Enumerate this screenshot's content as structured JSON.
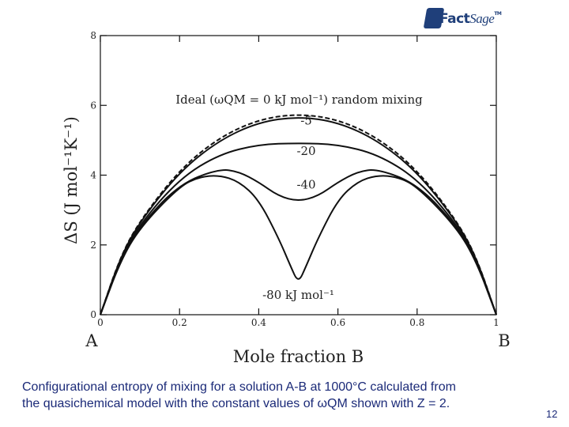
{
  "logo": {
    "brand_fact": "Fact",
    "brand_sage": "Sage",
    "tm": "TM",
    "icon": "factsage-logo-icon"
  },
  "caption": {
    "line1": "Configurational entropy of mixing for a solution A-B at 1000°C calculated from",
    "line2": "the quasichemical model with the constant values of ωQM shown with Z = 2."
  },
  "page_number": "12",
  "chart_data": {
    "type": "line",
    "xlabel": "Mole fraction B",
    "ylabel": "ΔS (J mol⁻¹K⁻¹)",
    "xlim": [
      0,
      1
    ],
    "ylim": [
      0,
      8
    ],
    "x_ticks": [
      "0",
      "0.2",
      "0.4",
      "0.6",
      "0.8",
      "1"
    ],
    "y_ticks": [
      "0",
      "2",
      "4",
      "6",
      "8"
    ],
    "x_endpoint_labels": {
      "left": "A",
      "right": "B"
    },
    "grid": false,
    "series": [
      {
        "name": "Ideal (ωQM = 0 kJ mol⁻¹) random mixing",
        "style": "dashed",
        "omega": 0,
        "x": [
          0,
          0.05,
          0.1,
          0.2,
          0.3,
          0.4,
          0.5,
          0.6,
          0.7,
          0.8,
          0.9,
          0.95,
          1
        ],
        "y": [
          0,
          1.65,
          2.7,
          4.16,
          5.08,
          5.6,
          5.76,
          5.6,
          5.08,
          4.16,
          2.7,
          1.65,
          0
        ]
      },
      {
        "name": "-5",
        "style": "solid",
        "omega": -5,
        "x": [
          0,
          0.05,
          0.1,
          0.2,
          0.3,
          0.4,
          0.5,
          0.6,
          0.7,
          0.8,
          0.9,
          0.95,
          1
        ],
        "y": [
          0,
          1.63,
          2.67,
          4.1,
          5.0,
          5.52,
          5.68,
          5.52,
          5.0,
          4.1,
          2.67,
          1.63,
          0
        ]
      },
      {
        "name": "-20",
        "style": "solid",
        "omega": -20,
        "x": [
          0,
          0.05,
          0.1,
          0.2,
          0.3,
          0.4,
          0.5,
          0.6,
          0.7,
          0.8,
          0.9,
          0.95,
          1
        ],
        "y": [
          0,
          1.58,
          2.6,
          3.9,
          4.6,
          4.88,
          4.92,
          4.88,
          4.6,
          3.9,
          2.6,
          1.58,
          0
        ]
      },
      {
        "name": "-40",
        "style": "solid",
        "omega": -40,
        "x": [
          0,
          0.05,
          0.1,
          0.2,
          0.3,
          0.35,
          0.4,
          0.45,
          0.5,
          0.55,
          0.6,
          0.65,
          0.7,
          0.8,
          0.9,
          0.95,
          1
        ],
        "y": [
          0,
          1.55,
          2.55,
          3.75,
          4.18,
          4.1,
          3.8,
          3.4,
          3.25,
          3.4,
          3.8,
          4.1,
          4.18,
          3.75,
          2.55,
          1.55,
          0
        ]
      },
      {
        "name": "-80 kJ mol⁻¹",
        "style": "solid",
        "omega": -80,
        "x": [
          0,
          0.05,
          0.1,
          0.2,
          0.25,
          0.3,
          0.35,
          0.4,
          0.45,
          0.48,
          0.5,
          0.52,
          0.55,
          0.6,
          0.65,
          0.7,
          0.75,
          0.8,
          0.9,
          0.95,
          1
        ],
        "y": [
          0,
          1.52,
          2.5,
          3.68,
          3.95,
          4.0,
          3.82,
          3.3,
          2.2,
          1.4,
          0.9,
          1.4,
          2.2,
          3.3,
          3.82,
          4.0,
          3.95,
          3.68,
          2.5,
          1.52,
          0
        ]
      }
    ],
    "annotations": [
      {
        "text": "-5",
        "series": "-5"
      },
      {
        "text": "-20",
        "series": "-20"
      },
      {
        "text": "-40",
        "series": "-40"
      },
      {
        "text": "-80 kJ mol⁻¹",
        "series": "-80 kJ mol⁻¹"
      }
    ]
  }
}
